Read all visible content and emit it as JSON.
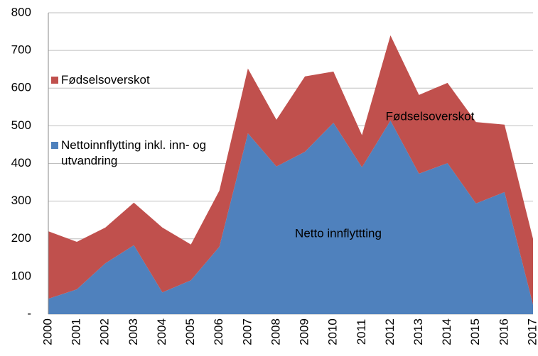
{
  "chart_data": {
    "type": "stacked_area",
    "categories": [
      "2000",
      "2001",
      "2002",
      "2003",
      "2004",
      "2005",
      "2006",
      "2007",
      "2008",
      "2009",
      "2010",
      "2011",
      "2012",
      "2013",
      "2014",
      "2015",
      "2016",
      "2017"
    ],
    "series": [
      {
        "name": "Nettoinnflytting inkl. inn- og utvandring",
        "color": "#4f81bd",
        "values": [
          41,
          66,
          135,
          183,
          58,
          90,
          179,
          480,
          392,
          431,
          508,
          390,
          514,
          373,
          401,
          294,
          324,
          25
        ]
      },
      {
        "name": "Fødselsoverskot",
        "color": "#c0504d",
        "values": [
          179,
          126,
          95,
          113,
          172,
          95,
          149,
          172,
          124,
          200,
          136,
          85,
          226,
          209,
          213,
          216,
          179,
          175
        ]
      }
    ],
    "annotations": [
      "Fødselsoverskot",
      "Netto innflyttting"
    ],
    "ylim": [
      0,
      800
    ],
    "yticks": [
      {
        "value": 0,
        "label": "-"
      },
      100,
      200,
      300,
      400,
      500,
      600,
      700,
      800
    ],
    "grid": true
  }
}
